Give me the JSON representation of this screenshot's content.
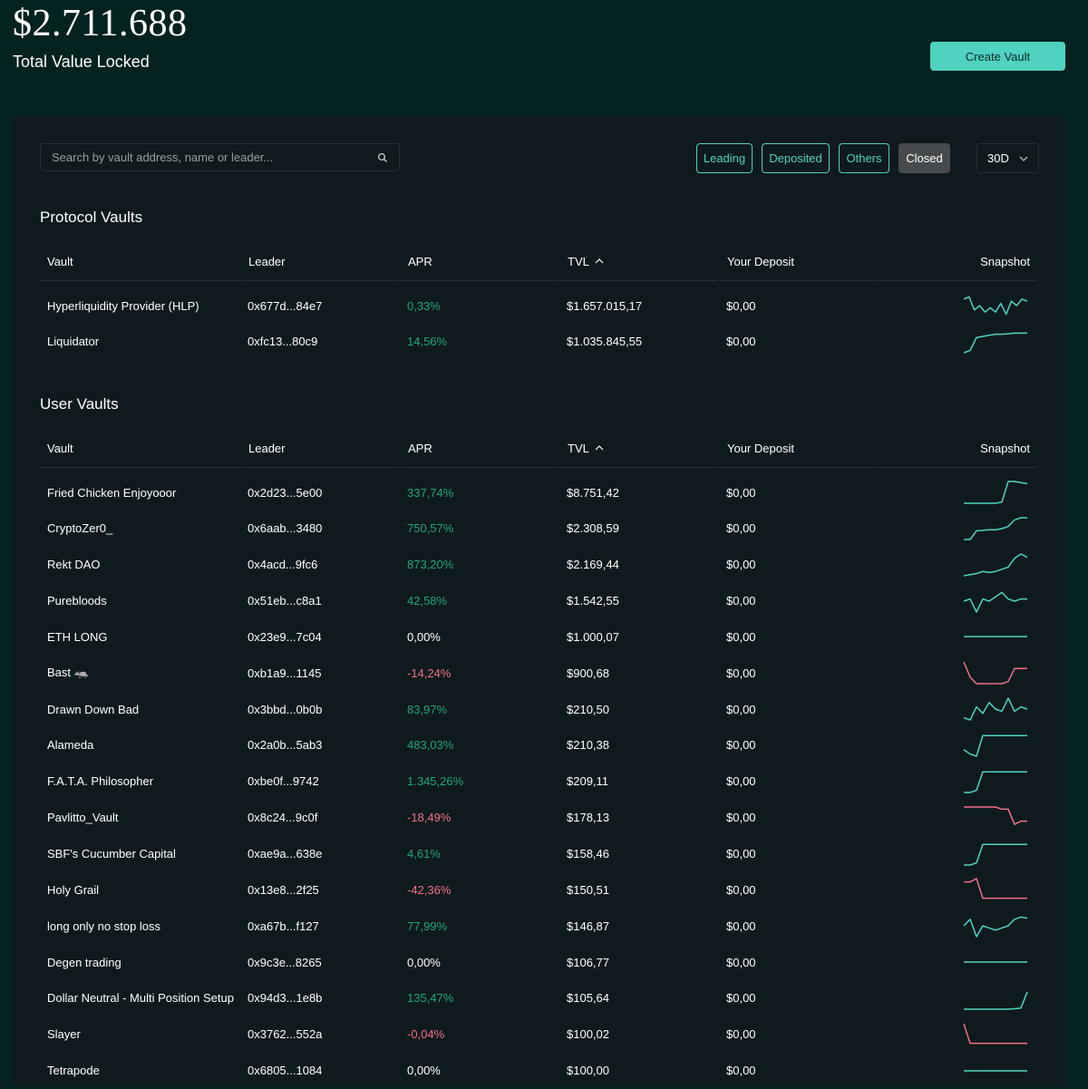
{
  "header": {
    "tvl_value": "$2.711.688",
    "tvl_label": "Total Value Locked",
    "create_button": "Create Vault"
  },
  "search": {
    "placeholder": "Search by vault address, name or leader..."
  },
  "filters": [
    {
      "label": "Leading",
      "active": false
    },
    {
      "label": "Deposited",
      "active": false
    },
    {
      "label": "Others",
      "active": false
    },
    {
      "label": "Closed",
      "active": true
    }
  ],
  "period": {
    "selected": "30D"
  },
  "columns": {
    "vault": "Vault",
    "leader": "Leader",
    "apr": "APR",
    "tvl": "TVL",
    "deposit": "Your Deposit",
    "snapshot": "Snapshot"
  },
  "colors": {
    "positive": "#1fa67d",
    "negative": "#ed7088",
    "accent": "#50d2c1"
  },
  "protocol": {
    "title": "Protocol Vaults",
    "rows": [
      {
        "vault": "Hyperliquidity Provider (HLP)",
        "leader": "0x677d...84e7",
        "apr": "0,33%",
        "trend": "pos",
        "tvl": "$1.657.015,17",
        "deposit": "$0,00",
        "spark": [
          0.8,
          0.9,
          0.3,
          0.5,
          0.2,
          0.4,
          0.2,
          0.6,
          0.1,
          0.7,
          0.5,
          0.8,
          0.7
        ]
      },
      {
        "vault": "Liquidator",
        "leader": "0xfc13...80c9",
        "apr": "14,56%",
        "trend": "pos",
        "tvl": "$1.035.845,55",
        "deposit": "$0,00",
        "spark": [
          0.0,
          0.1,
          0.7,
          0.75,
          0.8,
          0.85,
          0.85,
          0.87,
          0.9,
          0.9,
          0.9
        ]
      }
    ]
  },
  "user": {
    "title": "User Vaults",
    "rows": [
      {
        "vault": "Fried Chicken Enjoyooor",
        "leader": "0x2d23...5e00",
        "apr": "337,74%",
        "trend": "pos",
        "tvl": "$8.751,42",
        "deposit": "$0,00",
        "spark": [
          0,
          0,
          0,
          0,
          0,
          0,
          0.05,
          1,
          1,
          0.95,
          0.9
        ]
      },
      {
        "vault": "CryptoZer0_",
        "leader": "0x6aab...3480",
        "apr": "750,57%",
        "trend": "pos",
        "tvl": "$2.308,59",
        "deposit": "$0,00",
        "spark": [
          0,
          0,
          0.4,
          0.42,
          0.45,
          0.45,
          0.5,
          0.6,
          0.9,
          1,
          1
        ]
      },
      {
        "vault": "Rekt DAO",
        "leader": "0x4acd...9fc6",
        "apr": "873,20%",
        "trend": "pos",
        "tvl": "$2.169,44",
        "deposit": "$0,00",
        "spark": [
          0,
          0.05,
          0.1,
          0.2,
          0.15,
          0.2,
          0.3,
          0.4,
          0.8,
          1,
          0.85
        ]
      },
      {
        "vault": "Purebloods",
        "leader": "0x51eb...c8a1",
        "apr": "42,58%",
        "trend": "pos",
        "tvl": "$1.542,55",
        "deposit": "$0,00",
        "spark": [
          0.5,
          0.6,
          0.0,
          0.6,
          0.5,
          0.7,
          0.9,
          0.6,
          0.5,
          0.6,
          0.6
        ]
      },
      {
        "vault": "ETH LONG",
        "leader": "0x23e9...7c04",
        "apr": "0,00%",
        "trend": "pos",
        "tvl": "$1.000,07",
        "deposit": "$0,00",
        "spark": [
          0.5,
          0.5,
          0.5,
          0.5,
          0.5,
          0.5,
          0.5,
          0.5,
          0.5,
          0.5,
          0.5
        ]
      },
      {
        "vault": "Bast 🦡",
        "leader": "0xb1a9...1145",
        "apr": "-14,24%",
        "trend": "neg",
        "tvl": "$900,68",
        "deposit": "$0,00",
        "spark": [
          1,
          0.3,
          0,
          0,
          0,
          0,
          0,
          0.1,
          0.7,
          0.7,
          0.7
        ]
      },
      {
        "vault": "Drawn Down Bad",
        "leader": "0x3bbd...0b0b",
        "apr": "83,97%",
        "trend": "pos",
        "tvl": "$210,50",
        "deposit": "$0,00",
        "spark": [
          0.1,
          0.0,
          0.6,
          0.3,
          0.8,
          0.5,
          0.4,
          1,
          0.4,
          0.6,
          0.5
        ]
      },
      {
        "vault": "Alameda",
        "leader": "0x2a0b...5ab3",
        "apr": "483,03%",
        "trend": "pos",
        "tvl": "$210,38",
        "deposit": "$0,00",
        "spark": [
          0.3,
          0.1,
          0.0,
          0.95,
          0.95,
          0.95,
          0.95,
          0.95,
          0.95,
          0.95,
          0.95
        ]
      },
      {
        "vault": "F.A.T.A. Philosopher",
        "leader": "0xbe0f...9742",
        "apr": "1.345,26%",
        "trend": "pos",
        "tvl": "$209,11",
        "deposit": "$0,00",
        "spark": [
          0,
          0,
          0.1,
          0.95,
          0.95,
          0.95,
          0.95,
          0.95,
          0.95,
          0.95,
          0.95
        ]
      },
      {
        "vault": "Pavlitto_Vault",
        "leader": "0x8c24...9c0f",
        "apr": "-18,49%",
        "trend": "neg",
        "tvl": "$178,13",
        "deposit": "$0,00",
        "spark": [
          1,
          1,
          1,
          1,
          1,
          1,
          0.9,
          0.9,
          0.2,
          0.35,
          0.35
        ]
      },
      {
        "vault": "SBF's Cucumber Capital",
        "leader": "0xae9a...638e",
        "apr": "4,61%",
        "trend": "pos",
        "tvl": "$158,46",
        "deposit": "$0,00",
        "spark": [
          0,
          0,
          0.1,
          0.95,
          0.95,
          0.95,
          0.95,
          0.95,
          0.95,
          0.95,
          0.95
        ]
      },
      {
        "vault": "Holy Grail",
        "leader": "0x13e8...2f25",
        "apr": "-42,36%",
        "trend": "neg",
        "tvl": "$150,51",
        "deposit": "$0,00",
        "spark": [
          0.85,
          0.85,
          1,
          0.1,
          0.1,
          0.1,
          0.1,
          0.1,
          0.1,
          0.1,
          0.1
        ]
      },
      {
        "vault": "long only no stop loss",
        "leader": "0xa67b...f127",
        "apr": "77,99%",
        "trend": "pos",
        "tvl": "$146,87",
        "deposit": "$0,00",
        "spark": [
          0.5,
          0.8,
          0.0,
          0.5,
          0.4,
          0.3,
          0.4,
          0.5,
          0.8,
          0.9,
          0.85
        ]
      },
      {
        "vault": "Degen trading",
        "leader": "0x9c3e...8265",
        "apr": "0,00%",
        "trend": "pos",
        "tvl": "$106,77",
        "deposit": "$0,00",
        "spark": [
          0.5,
          0.5,
          0.5,
          0.5,
          0.5,
          0.5,
          0.5,
          0.5,
          0.5,
          0.5,
          0.5
        ]
      },
      {
        "vault": "Dollar Neutral - Multi Position Setup",
        "leader": "0x94d3...1e8b",
        "apr": "135,47%",
        "trend": "pos",
        "tvl": "$105,64",
        "deposit": "$0,00",
        "spark": [
          0,
          0,
          0,
          0,
          0,
          0,
          0,
          0,
          0.02,
          0.05,
          0.8
        ]
      },
      {
        "vault": "Slayer",
        "leader": "0x3762...552a",
        "apr": "-0,04%",
        "trend": "neg",
        "tvl": "$100,02",
        "deposit": "$0,00",
        "spark": [
          1,
          0.1,
          0.1,
          0.1,
          0.1,
          0.1,
          0.1,
          0.1,
          0.1,
          0.1,
          0.1
        ]
      },
      {
        "vault": "Tetrapode",
        "leader": "0x6805...1084",
        "apr": "0,00%",
        "trend": "pos",
        "tvl": "$100,00",
        "deposit": "$0,00",
        "spark": [
          0.5,
          0.5,
          0.5,
          0.5,
          0.5,
          0.5,
          0.5,
          0.5,
          0.5,
          0.5,
          0.5
        ]
      }
    ]
  }
}
